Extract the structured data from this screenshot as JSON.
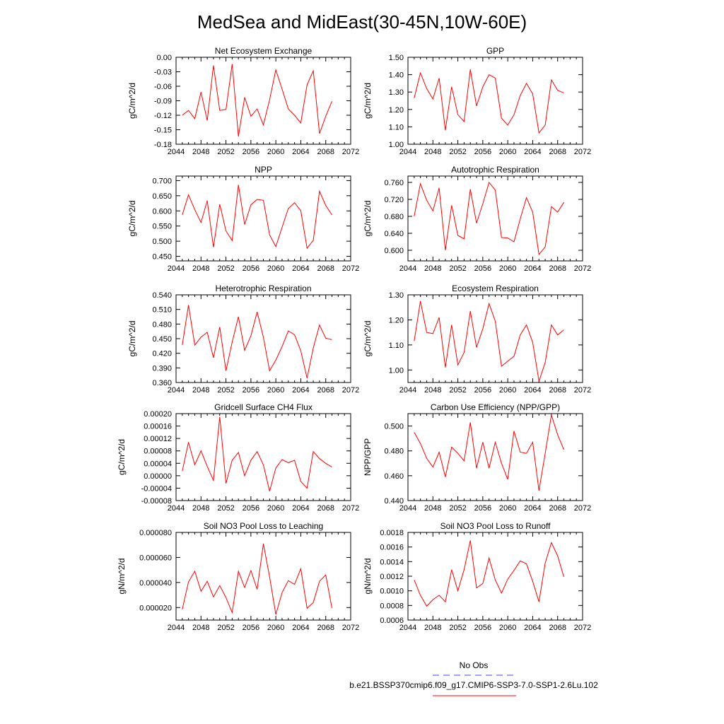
{
  "title": "MedSea and MidEast(30-45N,10W-60E)",
  "colors": {
    "series": "#ff0000",
    "obs": "#4040ff",
    "axis": "#000000"
  },
  "legend": {
    "obs_label": "No Obs",
    "run_label": "b.e21.BSSP370cmip6.f09_g17.CMIP6-SSP3-7.0-SSP1-2.6Lu.102"
  },
  "chart_data": [
    {
      "type": "line",
      "title": "Net Ecosystem Exchange",
      "ylabel": "gC/m^2/d",
      "xlim": [
        2044,
        2072
      ],
      "xticks": [
        2044,
        2048,
        2052,
        2056,
        2060,
        2064,
        2068,
        2072
      ],
      "ylim": [
        -0.18,
        0.0
      ],
      "ytick_labels": [
        "0.00",
        "-0.03",
        "-0.06",
        "-0.09",
        "-0.12",
        "-0.15",
        "-0.18"
      ],
      "ytick_values": [
        0.0,
        -0.03,
        -0.06,
        -0.09,
        -0.12,
        -0.15,
        -0.18
      ],
      "series": [
        {
          "x": [
            2045,
            2046,
            2047,
            2048,
            2049,
            2050,
            2051,
            2052,
            2053,
            2054,
            2055,
            2056,
            2057,
            2058,
            2059,
            2060,
            2061,
            2062,
            2063,
            2064,
            2065,
            2066,
            2067,
            2068,
            2069
          ],
          "y": [
            -0.12,
            -0.11,
            -0.127,
            -0.072,
            -0.131,
            -0.017,
            -0.11,
            -0.108,
            -0.014,
            -0.164,
            -0.083,
            -0.122,
            -0.107,
            -0.14,
            -0.088,
            -0.026,
            -0.066,
            -0.107,
            -0.12,
            -0.136,
            -0.057,
            -0.028,
            -0.158,
            -0.122,
            -0.091
          ]
        }
      ]
    },
    {
      "type": "line",
      "title": "GPP",
      "ylabel": "gC/m^2/d",
      "xlim": [
        2044,
        2072
      ],
      "xticks": [
        2044,
        2048,
        2052,
        2056,
        2060,
        2064,
        2068,
        2072
      ],
      "ylim": [
        1.0,
        1.5
      ],
      "ytick_labels": [
        "1.50",
        "1.40",
        "1.30",
        "1.20",
        "1.10",
        "1.00"
      ],
      "ytick_values": [
        1.5,
        1.4,
        1.3,
        1.2,
        1.1,
        1.0
      ],
      "series": [
        {
          "x": [
            2045,
            2046,
            2047,
            2048,
            2049,
            2050,
            2051,
            2052,
            2053,
            2054,
            2055,
            2056,
            2057,
            2058,
            2059,
            2060,
            2061,
            2062,
            2063,
            2064,
            2065,
            2066,
            2067,
            2068,
            2069
          ],
          "y": [
            1.265,
            1.41,
            1.32,
            1.26,
            1.38,
            1.08,
            1.33,
            1.17,
            1.13,
            1.43,
            1.22,
            1.33,
            1.4,
            1.38,
            1.15,
            1.11,
            1.17,
            1.28,
            1.35,
            1.29,
            1.065,
            1.11,
            1.37,
            1.31,
            1.295
          ]
        }
      ]
    },
    {
      "type": "line",
      "title": "NPP",
      "ylabel": "gC/m^2/d",
      "xlim": [
        2044,
        2072
      ],
      "xticks": [
        2044,
        2048,
        2052,
        2056,
        2060,
        2064,
        2068,
        2072
      ],
      "ylim": [
        0.435,
        0.715
      ],
      "ytick_labels": [
        "0.700",
        "0.650",
        "0.600",
        "0.550",
        "0.500",
        "0.450"
      ],
      "ytick_values": [
        0.7,
        0.65,
        0.6,
        0.55,
        0.5,
        0.45
      ],
      "series": [
        {
          "x": [
            2045,
            2046,
            2047,
            2048,
            2049,
            2050,
            2051,
            2052,
            2053,
            2054,
            2055,
            2056,
            2057,
            2058,
            2059,
            2060,
            2061,
            2062,
            2063,
            2064,
            2065,
            2066,
            2067,
            2068,
            2069
          ],
          "y": [
            0.587,
            0.653,
            0.604,
            0.562,
            0.634,
            0.48,
            0.622,
            0.534,
            0.502,
            0.686,
            0.555,
            0.62,
            0.638,
            0.635,
            0.521,
            0.482,
            0.546,
            0.608,
            0.627,
            0.601,
            0.477,
            0.503,
            0.665,
            0.618,
            0.587
          ]
        }
      ]
    },
    {
      "type": "line",
      "title": "Autotrophic Respiration",
      "ylabel": "gC/m^2/d",
      "xlim": [
        2044,
        2072
      ],
      "xticks": [
        2044,
        2048,
        2052,
        2056,
        2060,
        2064,
        2068,
        2072
      ],
      "ylim": [
        0.575,
        0.775
      ],
      "ytick_labels": [
        "0.760",
        "0.720",
        "0.680",
        "0.640",
        "0.600"
      ],
      "ytick_values": [
        0.76,
        0.72,
        0.68,
        0.64,
        0.6
      ],
      "series": [
        {
          "x": [
            2045,
            2046,
            2047,
            2048,
            2049,
            2050,
            2051,
            2052,
            2053,
            2054,
            2055,
            2056,
            2057,
            2058,
            2059,
            2060,
            2061,
            2062,
            2063,
            2064,
            2065,
            2066,
            2067,
            2068,
            2069
          ],
          "y": [
            0.68,
            0.757,
            0.718,
            0.693,
            0.747,
            0.6,
            0.706,
            0.635,
            0.627,
            0.744,
            0.664,
            0.71,
            0.76,
            0.742,
            0.63,
            0.629,
            0.62,
            0.674,
            0.724,
            0.69,
            0.59,
            0.608,
            0.703,
            0.69,
            0.713
          ]
        }
      ]
    },
    {
      "type": "line",
      "title": "Heterotrophic Respiration",
      "ylabel": "gC/m^2/d",
      "xlim": [
        2044,
        2072
      ],
      "xticks": [
        2044,
        2048,
        2052,
        2056,
        2060,
        2064,
        2068,
        2072
      ],
      "ylim": [
        0.36,
        0.54
      ],
      "ytick_labels": [
        "0.540",
        "0.510",
        "0.480",
        "0.450",
        "0.420",
        "0.390",
        "0.360"
      ],
      "ytick_values": [
        0.54,
        0.51,
        0.48,
        0.45,
        0.42,
        0.39,
        0.36
      ],
      "series": [
        {
          "x": [
            2045,
            2046,
            2047,
            2048,
            2049,
            2050,
            2051,
            2052,
            2053,
            2054,
            2055,
            2056,
            2057,
            2058,
            2059,
            2060,
            2061,
            2062,
            2063,
            2064,
            2065,
            2066,
            2067,
            2068,
            2069
          ],
          "y": [
            0.437,
            0.519,
            0.437,
            0.453,
            0.463,
            0.411,
            0.474,
            0.384,
            0.443,
            0.495,
            0.426,
            0.456,
            0.505,
            0.453,
            0.384,
            0.406,
            0.434,
            0.466,
            0.458,
            0.425,
            0.369,
            0.431,
            0.478,
            0.451,
            0.448
          ]
        }
      ]
    },
    {
      "type": "line",
      "title": "Ecosystem Respiration",
      "ylabel": "gC/m^2/d",
      "xlim": [
        2044,
        2072
      ],
      "xticks": [
        2044,
        2048,
        2052,
        2056,
        2060,
        2064,
        2068,
        2072
      ],
      "ylim": [
        0.95,
        1.3
      ],
      "ytick_labels": [
        "1.30",
        "1.20",
        "1.10",
        "1.00"
      ],
      "ytick_values": [
        1.3,
        1.2,
        1.1,
        1.0
      ],
      "series": [
        {
          "x": [
            2045,
            2046,
            2047,
            2048,
            2049,
            2050,
            2051,
            2052,
            2053,
            2054,
            2055,
            2056,
            2057,
            2058,
            2059,
            2060,
            2061,
            2062,
            2063,
            2064,
            2065,
            2066,
            2067,
            2068,
            2069
          ],
          "y": [
            1.115,
            1.275,
            1.15,
            1.145,
            1.21,
            1.01,
            1.18,
            1.02,
            1.07,
            1.235,
            1.09,
            1.165,
            1.265,
            1.195,
            1.015,
            1.035,
            1.055,
            1.14,
            1.18,
            1.11,
            0.955,
            1.03,
            1.18,
            1.14,
            1.16
          ]
        }
      ]
    },
    {
      "type": "line",
      "title": "Gridcell Surface CH4 Flux",
      "ylabel": "gC/m^2/d",
      "xlim": [
        2044,
        2072
      ],
      "xticks": [
        2044,
        2048,
        2052,
        2056,
        2060,
        2064,
        2068,
        2072
      ],
      "ylim": [
        -8e-05,
        0.0002
      ],
      "ytick_labels": [
        "0.00020",
        "0.00016",
        "0.00012",
        "0.00008",
        "0.00004",
        "0.00000",
        "-0.00004",
        "-0.00008"
      ],
      "ytick_values": [
        0.0002,
        0.00016,
        0.00012,
        8e-05,
        4e-05,
        0.0,
        -4e-05,
        -8e-05
      ],
      "series": [
        {
          "x": [
            2045,
            2046,
            2047,
            2048,
            2049,
            2050,
            2051,
            2052,
            2053,
            2054,
            2055,
            2056,
            2057,
            2058,
            2059,
            2060,
            2061,
            2062,
            2063,
            2064,
            2065,
            2066,
            2067,
            2068,
            2069
          ],
          "y": [
            1.5e-05,
            0.000108,
            3.5e-05,
            8e-05,
            3e-05,
            -1.5e-05,
            0.00019,
            -2.5e-05,
            5e-05,
            7.5e-05,
            0.0,
            5e-05,
            7.8e-05,
            3.5e-05,
            -5e-05,
            2.5e-05,
            5.2e-05,
            4.2e-05,
            5e-05,
            -1.8e-05,
            -4e-05,
            7.8e-05,
            5.5e-05,
            4e-05,
            2.8e-05
          ]
        }
      ]
    },
    {
      "type": "line",
      "title": "Carbon Use Efficiency (NPP/GPP)",
      "ylabel": "NPP/GPP",
      "xlim": [
        2044,
        2072
      ],
      "xticks": [
        2044,
        2048,
        2052,
        2056,
        2060,
        2064,
        2068,
        2072
      ],
      "ylim": [
        0.44,
        0.51
      ],
      "ytick_labels": [
        "0.500",
        "0.480",
        "0.460",
        "0.440"
      ],
      "ytick_values": [
        0.5,
        0.48,
        0.46,
        0.44
      ],
      "series": [
        {
          "x": [
            2045,
            2046,
            2047,
            2048,
            2049,
            2050,
            2051,
            2052,
            2053,
            2054,
            2055,
            2056,
            2057,
            2058,
            2059,
            2060,
            2061,
            2062,
            2063,
            2064,
            2065,
            2066,
            2067,
            2068,
            2069
          ],
          "y": [
            0.495,
            0.486,
            0.474,
            0.467,
            0.479,
            0.459,
            0.483,
            0.478,
            0.472,
            0.503,
            0.466,
            0.487,
            0.466,
            0.487,
            0.47,
            0.457,
            0.496,
            0.479,
            0.478,
            0.487,
            0.448,
            0.478,
            0.509,
            0.493,
            0.481
          ]
        }
      ]
    },
    {
      "type": "line",
      "title": "Soil NO3 Pool Loss to Leaching",
      "ylabel": "gN/m^2/d",
      "xlim": [
        2044,
        2072
      ],
      "xticks": [
        2044,
        2048,
        2052,
        2056,
        2060,
        2064,
        2068,
        2072
      ],
      "ylim": [
        1e-05,
        8e-05
      ],
      "ytick_labels": [
        "0.000080",
        "0.000060",
        "0.000040",
        "0.000020"
      ],
      "ytick_values": [
        8e-05,
        6e-05,
        4e-05,
        2e-05
      ],
      "series": [
        {
          "x": [
            2045,
            2046,
            2047,
            2048,
            2049,
            2050,
            2051,
            2052,
            2053,
            2054,
            2055,
            2056,
            2057,
            2058,
            2059,
            2060,
            2061,
            2062,
            2063,
            2064,
            2065,
            2066,
            2067,
            2068,
            2069
          ],
          "y": [
            1.85e-05,
            4.05e-05,
            4.9e-05,
            3.3e-05,
            4.1e-05,
            2.85e-05,
            3.75e-05,
            2.8e-05,
            1.6e-05,
            4.9e-05,
            3.6e-05,
            4.95e-05,
            3.45e-05,
            7.1e-05,
            4.45e-05,
            1.45e-05,
            3.2e-05,
            4.15e-05,
            3.85e-05,
            5.1e-05,
            1.95e-05,
            2.4e-05,
            4.1e-05,
            4.6e-05,
            1.95e-05
          ]
        }
      ]
    },
    {
      "type": "line",
      "title": "Soil NO3 Pool Loss to Runoff",
      "ylabel": "gN/m^2/d",
      "xlim": [
        2044,
        2072
      ],
      "xticks": [
        2044,
        2048,
        2052,
        2056,
        2060,
        2064,
        2068,
        2072
      ],
      "ylim": [
        0.0006,
        0.0018
      ],
      "ytick_labels": [
        "0.0018",
        "0.0016",
        "0.0014",
        "0.0012",
        "0.0010",
        "0.0008",
        "0.0006"
      ],
      "ytick_values": [
        0.0018,
        0.0016,
        0.0014,
        0.0012,
        0.001,
        0.0008,
        0.0006
      ],
      "series": [
        {
          "x": [
            2045,
            2046,
            2047,
            2048,
            2049,
            2050,
            2051,
            2052,
            2053,
            2054,
            2055,
            2056,
            2057,
            2058,
            2059,
            2060,
            2061,
            2062,
            2063,
            2064,
            2065,
            2066,
            2067,
            2068,
            2069
          ],
          "y": [
            0.00115,
            0.00094,
            0.00079,
            0.00088,
            0.00094,
            0.00085,
            0.00129,
            0.001,
            0.00129,
            0.00169,
            0.00104,
            0.0011,
            0.00145,
            0.00115,
            0.00097,
            0.00116,
            0.00128,
            0.00141,
            0.00137,
            0.00113,
            0.00085,
            0.00138,
            0.00166,
            0.00148,
            0.00119
          ]
        }
      ]
    }
  ]
}
